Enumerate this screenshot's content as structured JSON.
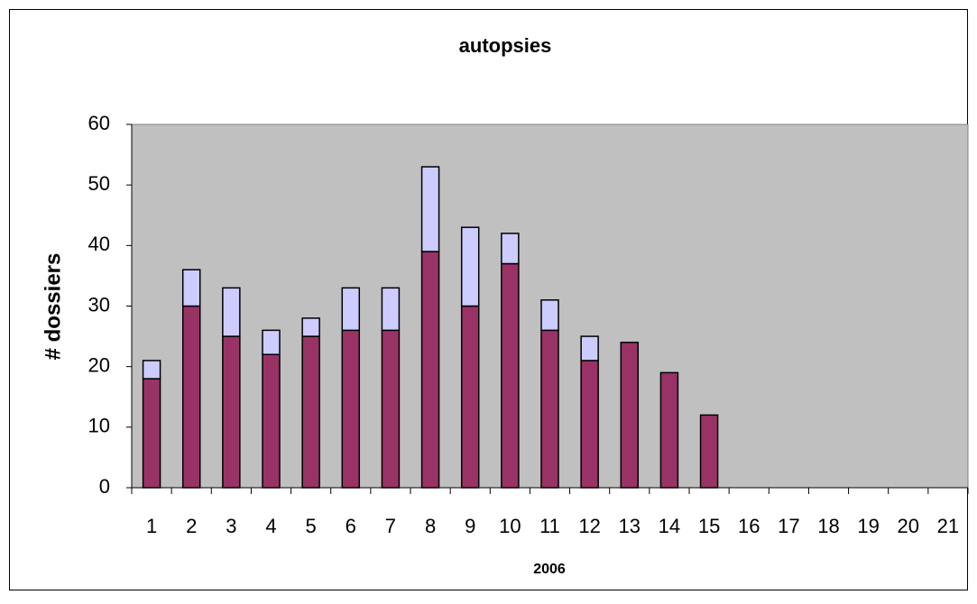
{
  "chart_data": {
    "type": "stacked_bar",
    "title": "autopsies",
    "x_label": "2006",
    "y_label": "# dossiers",
    "categories": [
      "1",
      "2",
      "3",
      "4",
      "5",
      "6",
      "7",
      "8",
      "9",
      "10",
      "11",
      "12",
      "13",
      "14",
      "15",
      "16",
      "17",
      "18",
      "19",
      "20",
      "21"
    ],
    "series": [
      {
        "color": "#993366",
        "values": [
          18,
          30,
          25,
          22,
          25,
          26,
          26,
          39,
          30,
          37,
          26,
          21,
          24,
          19,
          12,
          null,
          null,
          null,
          null,
          null,
          null
        ]
      },
      {
        "color": "#ccccff",
        "values": [
          3,
          6,
          8,
          4,
          3,
          7,
          7,
          14,
          13,
          5,
          5,
          4,
          null,
          null,
          null,
          null,
          null,
          null,
          null,
          null,
          null
        ]
      }
    ],
    "ylim": [
      0,
      60
    ],
    "yticks": [
      0,
      10,
      20,
      30,
      40,
      50,
      60
    ],
    "grid": false,
    "plot_background": "#c0c0c0"
  }
}
